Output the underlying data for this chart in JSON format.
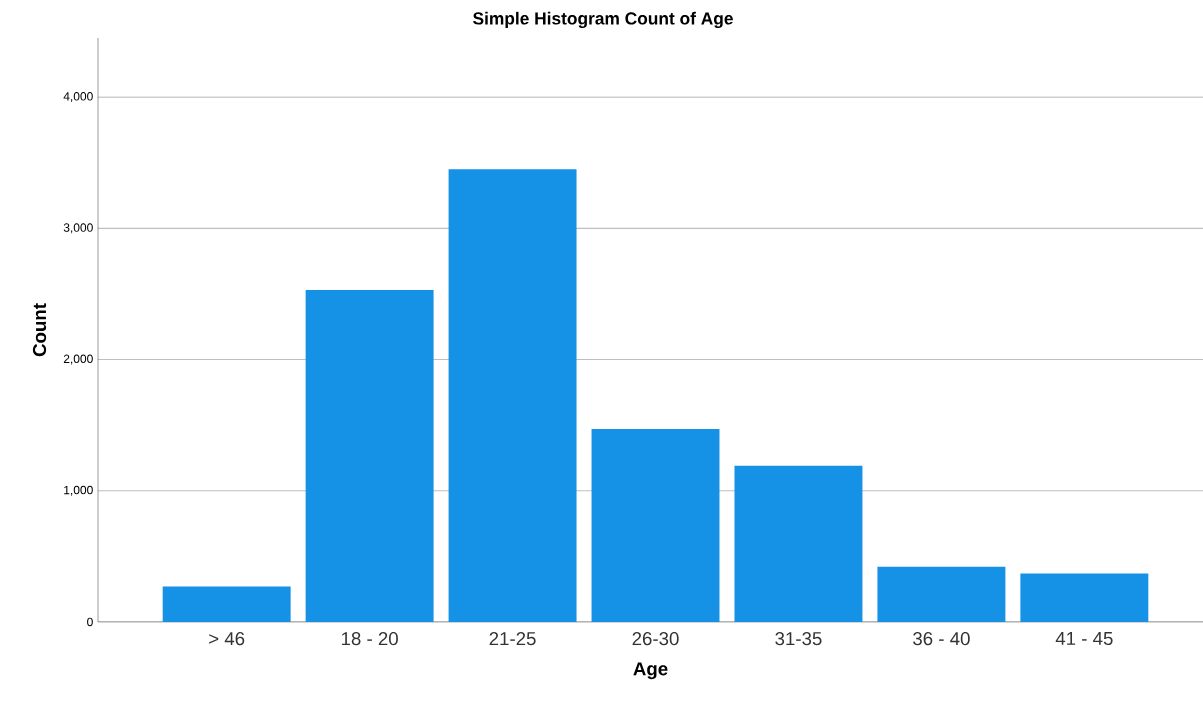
{
  "chart_data": {
    "type": "bar",
    "title": "Simple Histogram Count of Age",
    "xlabel": "Age",
    "ylabel": "Count",
    "categories": [
      "> 46",
      "18 - 20",
      "21-25",
      "26-30",
      "31-35",
      "36 - 40",
      "41 - 45"
    ],
    "values": [
      270,
      2530,
      3450,
      1470,
      1190,
      420,
      370
    ],
    "color": "#1591e6",
    "ylim": [
      0,
      4450
    ],
    "yticks": [
      0,
      {
        "value": 1000,
        "label": "1,000"
      },
      {
        "value": 2000,
        "label": "2,000"
      },
      {
        "value": 3000,
        "label": "3,000"
      },
      {
        "value": 4000,
        "label": "4,000"
      }
    ],
    "grid": "y"
  }
}
